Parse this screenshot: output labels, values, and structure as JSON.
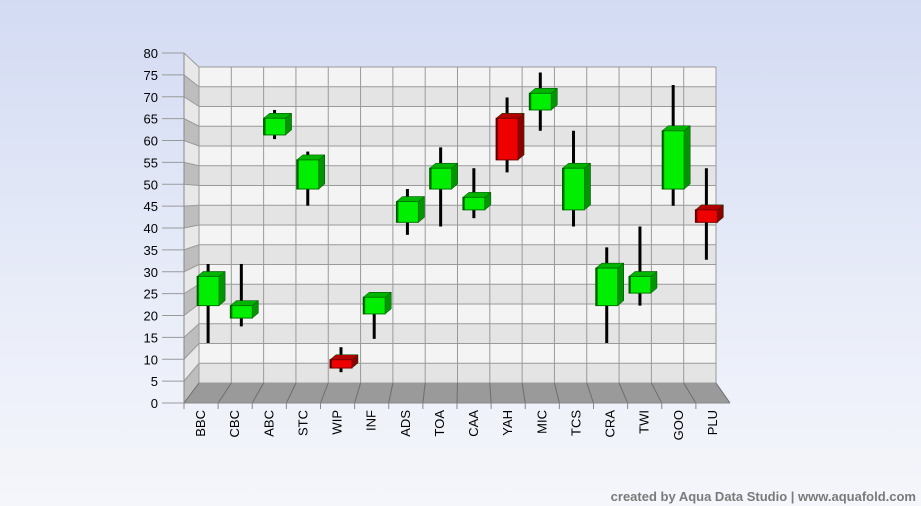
{
  "chart_data": {
    "type": "candlestick",
    "title": "",
    "xlabel": "",
    "ylabel": "",
    "ylim": [
      0,
      80
    ],
    "yticks": [
      0,
      5,
      10,
      15,
      20,
      25,
      30,
      35,
      40,
      45,
      50,
      55,
      60,
      65,
      70,
      75,
      80
    ],
    "grid": true,
    "legend": "none",
    "colors": {
      "up": "#00ee00",
      "down": "#ee0000",
      "wick": "#000000"
    },
    "categories": [
      "BBC",
      "CBC",
      "ABC",
      "STC",
      "WIP",
      "INF",
      "ADS",
      "TOA",
      "CAA",
      "YAH",
      "MIC",
      "TCS",
      "CRA",
      "TWI",
      "GOO",
      "PLU"
    ],
    "candles": [
      {
        "name": "BBC",
        "open": 21,
        "high": 31,
        "low": 12,
        "close": 28
      },
      {
        "name": "CBC",
        "open": 18,
        "high": 31,
        "low": 16,
        "close": 21
      },
      {
        "name": "ABC",
        "open": 62,
        "high": 68,
        "low": 61,
        "close": 66
      },
      {
        "name": "STC",
        "open": 49,
        "high": 58,
        "low": 45,
        "close": 56
      },
      {
        "name": "WIP",
        "open": 8,
        "high": 11,
        "low": 5,
        "close": 6
      },
      {
        "name": "INF",
        "open": 19,
        "high": 24,
        "low": 13,
        "close": 23
      },
      {
        "name": "ADS",
        "open": 41,
        "high": 49,
        "low": 38,
        "close": 46
      },
      {
        "name": "TOA",
        "open": 49,
        "high": 59,
        "low": 40,
        "close": 54
      },
      {
        "name": "CAA",
        "open": 44,
        "high": 54,
        "low": 42,
        "close": 47
      },
      {
        "name": "YAH",
        "open": 66,
        "high": 71,
        "low": 53,
        "close": 56
      },
      {
        "name": "MIC",
        "open": 68,
        "high": 77,
        "low": 63,
        "close": 72
      },
      {
        "name": "TCS",
        "open": 44,
        "high": 63,
        "low": 40,
        "close": 54
      },
      {
        "name": "CRA",
        "open": 21,
        "high": 35,
        "low": 12,
        "close": 30
      },
      {
        "name": "TWI",
        "open": 24,
        "high": 40,
        "low": 21,
        "close": 28
      },
      {
        "name": "GOO",
        "open": 49,
        "high": 74,
        "low": 45,
        "close": 63
      },
      {
        "name": "PLU",
        "open": 44,
        "high": 54,
        "low": 32,
        "close": 41
      }
    ]
  },
  "credit": "created by Aqua Data Studio | www.aquafold.com"
}
